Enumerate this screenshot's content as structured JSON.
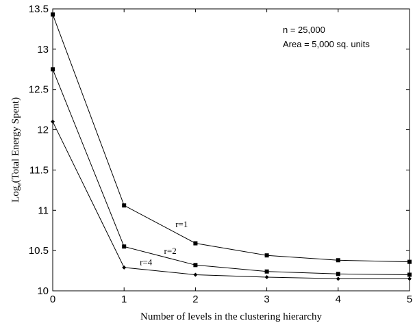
{
  "chart_data": {
    "type": "line",
    "title": "",
    "xlabel": "Number of levels in the clustering hierarchy",
    "ylabel": {
      "prefix": "Log",
      "subscript": "e",
      "suffix": "(Total Energy Spent)"
    },
    "x": [
      0,
      1,
      2,
      3,
      4,
      5
    ],
    "xlim": [
      0,
      5
    ],
    "ylim": [
      10,
      13.5
    ],
    "xticks": [
      "0",
      "1",
      "2",
      "3",
      "4",
      "5"
    ],
    "yticks": [
      "10",
      "10.5",
      "11",
      "11.5",
      "12",
      "12.5",
      "13",
      "13.5"
    ],
    "grid": false,
    "annotations": [
      "n = 25,000",
      "Area = 5,000 sq. units"
    ],
    "series": [
      {
        "name": "r=1",
        "marker": "square",
        "values": [
          13.43,
          11.06,
          10.59,
          10.44,
          10.38,
          10.36
        ]
      },
      {
        "name": "r=2",
        "marker": "square",
        "values": [
          12.75,
          10.55,
          10.32,
          10.24,
          10.21,
          10.2
        ]
      },
      {
        "name": "r=4",
        "marker": "diamond",
        "values": [
          12.1,
          10.29,
          10.2,
          10.17,
          10.15,
          10.15
        ]
      }
    ],
    "colors": {
      "line": "#000000",
      "axis": "#000000"
    }
  }
}
